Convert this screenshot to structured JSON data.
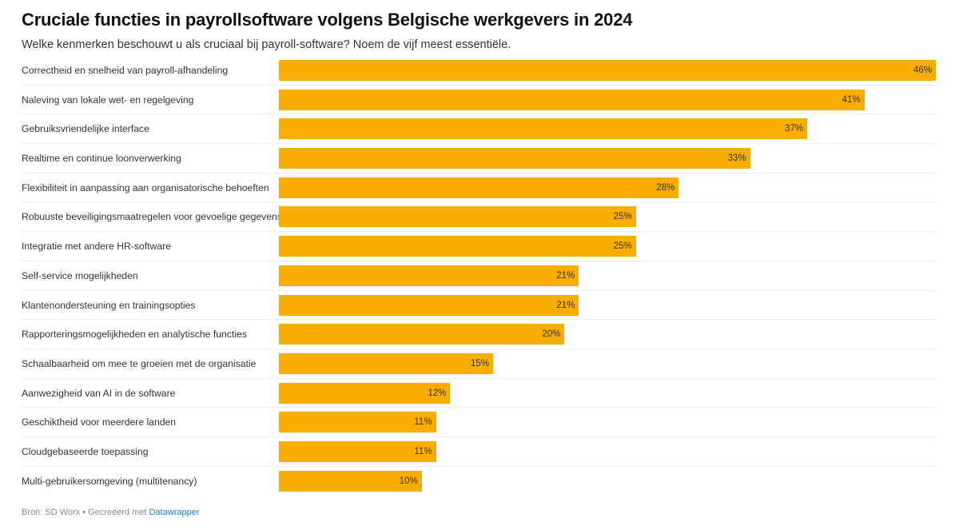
{
  "title": "Cruciale functies in payrollsoftware volgens Belgische werkgevers in 2024",
  "subtitle": "Welke kenmerken beschouwt u als cruciaal bij payroll-software? Noem de vijf meest essentiële.",
  "footer": {
    "source": "Bron: SD Worx • Gecreëerd met",
    "link": "Datawrapper"
  },
  "colors": {
    "bar": "#f8ad00"
  },
  "chart_data": {
    "type": "bar",
    "orientation": "horizontal",
    "title": "Cruciale functies in payrollsoftware volgens Belgische werkgevers in 2024",
    "xlabel": "",
    "ylabel": "",
    "unit": "%",
    "xlim": [
      0,
      46
    ],
    "categories": [
      "Correctheid en snelheid van payroll-afhandeling",
      "Naleving van lokale wet- en regelgeving",
      "Gebruiksvriendelijke interface",
      "Realtime en continue loonverwerking",
      "Flexibiliteit in aanpassing aan organisatorische behoeften",
      "Robuuste beveiligingsmaatregelen voor gevoelige gegevens",
      "Integratie met andere HR-software",
      "Self-service mogelijkheden",
      "Klantenondersteuning en trainingsopties",
      "Rapporteringsmogelijkheden en analytische functies",
      "Schaalbaarheid om mee te groeien met de organisatie",
      "Aanwezigheid van AI in de software",
      "Geschiktheid voor meerdere landen",
      "Cloudgebaseerde toepassing",
      "Multi-gebruikersomgeving (multitenancy)"
    ],
    "values": [
      46,
      41,
      37,
      33,
      28,
      25,
      25,
      21,
      21,
      20,
      15,
      12,
      11,
      11,
      10
    ],
    "value_labels": [
      "46%",
      "41%",
      "37%",
      "33%",
      "28%",
      "25%",
      "25%",
      "21%",
      "21%",
      "20%",
      "15%",
      "12%",
      "11%",
      "11%",
      "10%"
    ]
  }
}
